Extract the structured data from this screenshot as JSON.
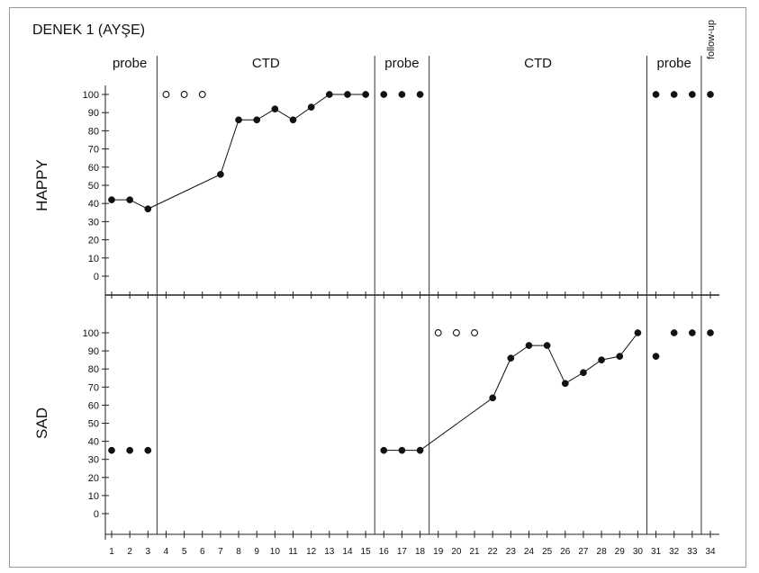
{
  "chart_data": {
    "type": "line",
    "title": "DENEK 1 (AYŞE)",
    "x": [
      1,
      2,
      3,
      4,
      5,
      6,
      7,
      8,
      9,
      10,
      11,
      12,
      13,
      14,
      15,
      16,
      17,
      18,
      19,
      20,
      21,
      22,
      23,
      24,
      25,
      26,
      27,
      28,
      29,
      30,
      31,
      32,
      33,
      34
    ],
    "xlim": [
      1,
      34
    ],
    "phases": [
      {
        "label": "probe",
        "from": 1,
        "to": 3
      },
      {
        "label": "CTD",
        "from": 4,
        "to": 15
      },
      {
        "label": "probe",
        "from": 16,
        "to": 18
      },
      {
        "label": "CTD",
        "from": 19,
        "to": 30
      },
      {
        "label": "probe",
        "from": 31,
        "to": 33
      },
      {
        "label": "follow-up",
        "from": 34,
        "to": 34
      }
    ],
    "panels": [
      {
        "ylabel": "HAPPY",
        "yticks": [
          100,
          90,
          80,
          70,
          60,
          50,
          40,
          30,
          20,
          10,
          0
        ],
        "ylim": [
          0,
          100
        ],
        "series": [
          {
            "marker": "filled",
            "connected": true,
            "points": [
              [
                1,
                42
              ],
              [
                2,
                42
              ],
              [
                3,
                37
              ],
              [
                7,
                56
              ],
              [
                8,
                86
              ],
              [
                9,
                86
              ],
              [
                10,
                92
              ],
              [
                11,
                86
              ],
              [
                12,
                93
              ],
              [
                13,
                100
              ],
              [
                14,
                100
              ],
              [
                15,
                100
              ]
            ]
          },
          {
            "marker": "open",
            "connected": false,
            "points": [
              [
                4,
                100
              ],
              [
                5,
                100
              ],
              [
                6,
                100
              ]
            ]
          },
          {
            "marker": "filled",
            "connected": false,
            "points": [
              [
                16,
                100
              ],
              [
                17,
                100
              ],
              [
                18,
                100
              ]
            ]
          },
          {
            "marker": "filled",
            "connected": false,
            "points": [
              [
                31,
                100
              ],
              [
                32,
                100
              ],
              [
                33,
                100
              ],
              [
                34,
                100
              ]
            ]
          }
        ]
      },
      {
        "ylabel": "SAD",
        "yticks": [
          100,
          90,
          80,
          70,
          60,
          50,
          40,
          30,
          20,
          10,
          0
        ],
        "ylim": [
          0,
          100
        ],
        "series": [
          {
            "marker": "filled",
            "connected": false,
            "points": [
              [
                1,
                35
              ],
              [
                2,
                35
              ],
              [
                3,
                35
              ]
            ]
          },
          {
            "marker": "filled",
            "connected": true,
            "points": [
              [
                16,
                35
              ],
              [
                17,
                35
              ],
              [
                18,
                35
              ],
              [
                22,
                64
              ],
              [
                23,
                86
              ],
              [
                24,
                93
              ],
              [
                25,
                93
              ],
              [
                26,
                72
              ],
              [
                27,
                78
              ],
              [
                28,
                85
              ],
              [
                29,
                87
              ],
              [
                30,
                100
              ]
            ]
          },
          {
            "marker": "open",
            "connected": false,
            "points": [
              [
                19,
                100
              ],
              [
                20,
                100
              ],
              [
                21,
                100
              ]
            ]
          },
          {
            "marker": "filled",
            "connected": false,
            "points": [
              [
                31,
                87
              ],
              [
                32,
                100
              ],
              [
                33,
                100
              ],
              [
                34,
                100
              ]
            ]
          }
        ]
      }
    ]
  }
}
